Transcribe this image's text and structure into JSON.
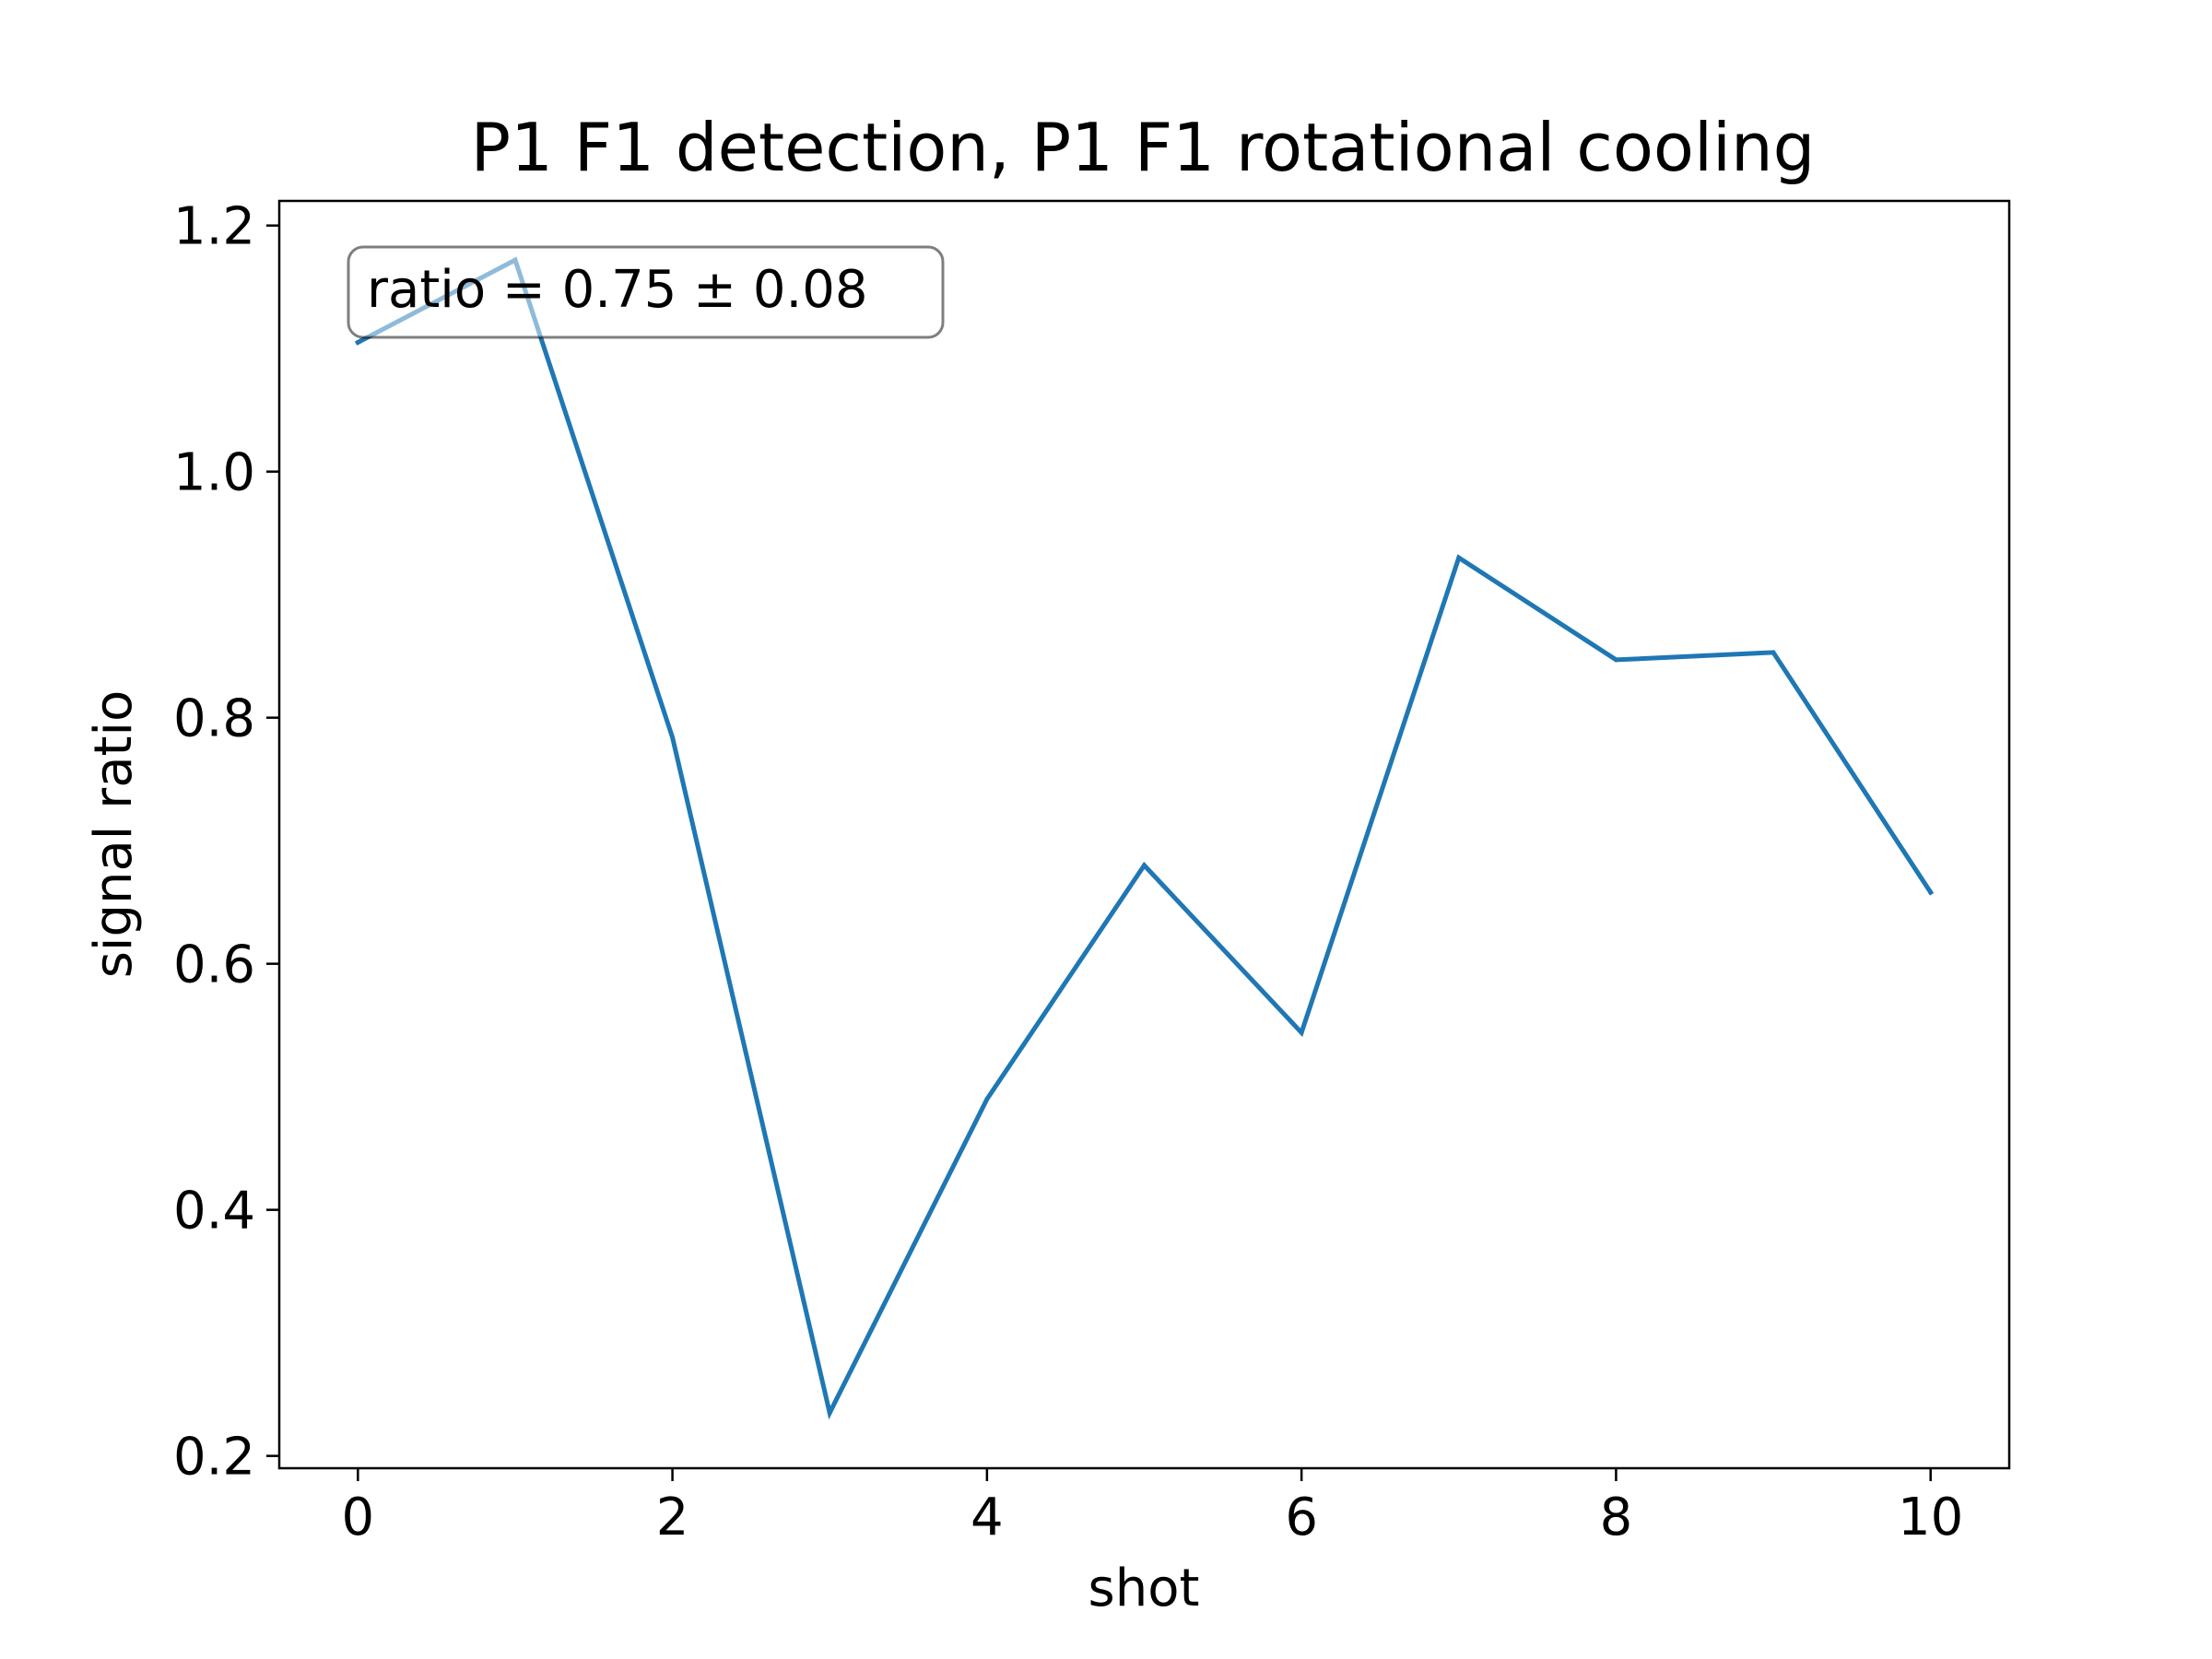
{
  "chart_data": {
    "type": "line",
    "title": "P1 F1 detection, P1 F1 rotational cooling",
    "xlabel": "shot",
    "ylabel": "signal ratio",
    "xlim": [
      -0.5,
      10.5
    ],
    "ylim": [
      0.19,
      1.22
    ],
    "xticks": [
      0,
      2,
      4,
      6,
      8,
      10
    ],
    "xtick_labels": [
      "0",
      "2",
      "4",
      "6",
      "8",
      "10"
    ],
    "yticks": [
      0.2,
      0.4,
      0.6,
      0.8,
      1.0,
      1.2
    ],
    "ytick_labels": [
      "0.2",
      "0.4",
      "0.6",
      "0.8",
      "1.0",
      "1.2"
    ],
    "grid": false,
    "series": [
      {
        "color": "#1f77b4",
        "x": [
          0,
          1,
          2,
          3,
          4,
          5,
          6,
          7,
          8,
          9,
          10
        ],
        "y": [
          1.105,
          1.172,
          0.784,
          0.235,
          0.49,
          0.68,
          0.544,
          0.93,
          0.847,
          0.853,
          0.658
        ]
      }
    ],
    "annotation": {
      "text": "ratio = 0.75 ± 0.08",
      "placement": "top-left"
    }
  }
}
